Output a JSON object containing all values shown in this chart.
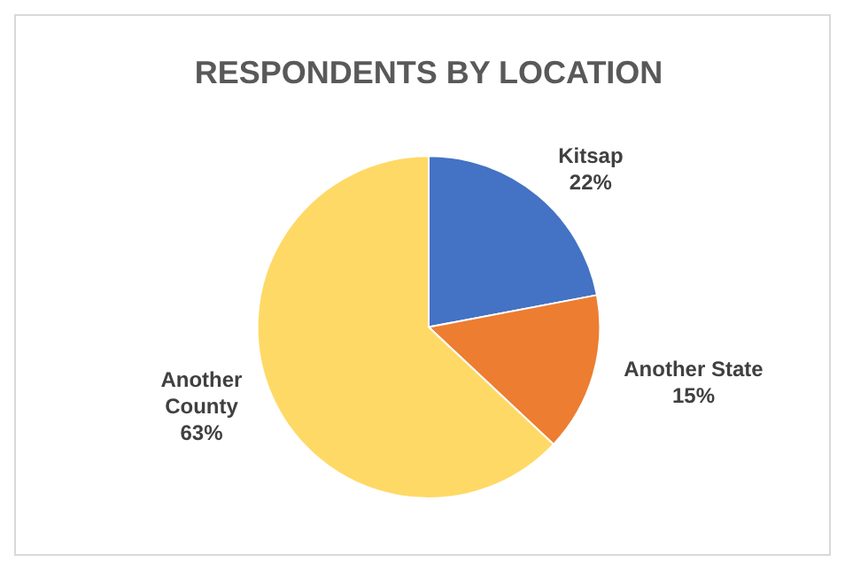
{
  "chart_data": {
    "type": "pie",
    "title": "RESPONDENTS BY LOCATION",
    "categories": [
      "Kitsap",
      "Another State",
      "Another County"
    ],
    "values": [
      22,
      15,
      63
    ],
    "colors": [
      "#4472c4",
      "#ed7d31",
      "#ffd966"
    ],
    "value_labels": [
      "22%",
      "15%",
      "63%"
    ],
    "legend": false
  }
}
